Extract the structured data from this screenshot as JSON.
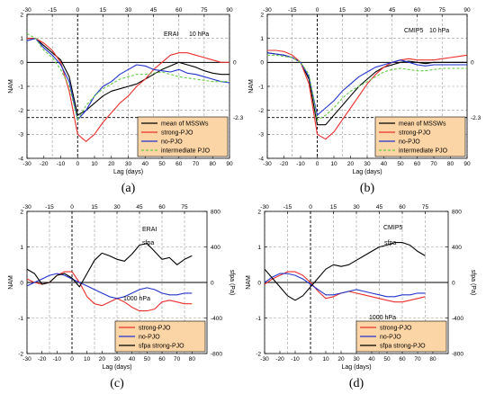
{
  "chart_data": [
    {
      "id": "a",
      "type": "line",
      "panel_label": "(a)",
      "annotations": [
        "ERAI",
        "10 hPa"
      ],
      "xlabel": "Lag (days)",
      "ylabel": "NAM",
      "y2label": "",
      "xlim": [
        -30,
        90
      ],
      "ylim": [
        -4,
        2
      ],
      "xticks_bottom": [
        -30,
        -20,
        -10,
        0,
        10,
        20,
        30,
        40,
        50,
        60,
        70,
        80,
        90
      ],
      "xticks_top": [
        -30,
        -15,
        0,
        15,
        30,
        45,
        60,
        75,
        90
      ],
      "yticks": [
        -4,
        -3,
        -2,
        -1,
        0,
        1,
        2
      ],
      "y2ticks": [],
      "y2lim": null,
      "right_labels": [
        {
          "text": "0",
          "y": 0
        },
        {
          "text": "-2.3",
          "y": -2.3
        }
      ],
      "hlines": [
        0,
        -2.3
      ],
      "vlines": [
        0
      ],
      "legend": {
        "position": "bottom-right",
        "entries": [
          "mean of MSSWs",
          "strong-PJO",
          "no-PJO",
          "intermediate PJO"
        ]
      },
      "series": [
        {
          "name": "mean of MSSWs",
          "color": "#000000",
          "style": "solid",
          "x": [
            -30,
            -25,
            -20,
            -15,
            -10,
            -5,
            0,
            5,
            10,
            15,
            20,
            25,
            30,
            35,
            40,
            45,
            50,
            55,
            60,
            65,
            70,
            75,
            80,
            85,
            90
          ],
          "y": [
            1.0,
            1.0,
            0.7,
            0.4,
            0.1,
            -0.6,
            -2.2,
            -2.0,
            -1.7,
            -1.4,
            -1.2,
            -1.1,
            -1.0,
            -0.9,
            -0.7,
            -0.5,
            -0.3,
            -0.15,
            0.0,
            -0.1,
            -0.2,
            -0.35,
            -0.45,
            -0.5,
            -0.5
          ]
        },
        {
          "name": "strong-PJO",
          "color": "#e8302e",
          "style": "solid",
          "x": [
            -30,
            -25,
            -20,
            -15,
            -10,
            -5,
            0,
            5,
            10,
            15,
            20,
            25,
            30,
            35,
            40,
            45,
            50,
            55,
            60,
            65,
            70,
            75,
            80,
            85,
            90
          ],
          "y": [
            1.0,
            1.0,
            0.8,
            0.5,
            0.0,
            -1.2,
            -3.0,
            -3.3,
            -3.0,
            -2.5,
            -2.1,
            -1.7,
            -1.4,
            -1.0,
            -0.7,
            -0.3,
            0.0,
            0.3,
            0.4,
            0.4,
            0.3,
            0.2,
            0.1,
            0.0,
            0.0
          ]
        },
        {
          "name": "no-PJO",
          "color": "#2233cc",
          "style": "solid",
          "x": [
            -30,
            -25,
            -20,
            -15,
            -10,
            -5,
            0,
            5,
            10,
            15,
            20,
            25,
            30,
            35,
            40,
            45,
            50,
            55,
            60,
            65,
            70,
            75,
            80,
            85,
            90
          ],
          "y": [
            0.9,
            1.0,
            0.6,
            0.3,
            -0.1,
            -0.8,
            -2.4,
            -2.0,
            -1.4,
            -1.0,
            -0.8,
            -0.5,
            -0.3,
            -0.1,
            -0.15,
            -0.3,
            -0.35,
            -0.4,
            -0.3,
            -0.45,
            -0.5,
            -0.6,
            -0.7,
            -0.8,
            -0.85
          ]
        },
        {
          "name": "intermediate PJO",
          "color": "#66cc44",
          "style": "dashed",
          "x": [
            -30,
            -25,
            -20,
            -15,
            -10,
            -5,
            0,
            5,
            10,
            15,
            20,
            25,
            30,
            35,
            40,
            45,
            50,
            55,
            60,
            65,
            70,
            75,
            80,
            85,
            90
          ],
          "y": [
            1.2,
            1.0,
            0.5,
            0.2,
            -0.3,
            -1.0,
            -2.4,
            -1.8,
            -1.4,
            -1.1,
            -0.9,
            -0.7,
            -0.6,
            -0.5,
            -0.5,
            -0.45,
            -0.4,
            -0.5,
            -0.6,
            -0.65,
            -0.7,
            -0.75,
            -0.8,
            -0.8,
            -0.8
          ]
        }
      ]
    },
    {
      "id": "b",
      "type": "line",
      "panel_label": "(b)",
      "annotations": [
        "CMIP5",
        "10 hPa"
      ],
      "xlabel": "Lag (days)",
      "ylabel": "NAM",
      "y2label": "",
      "xlim": [
        -30,
        90
      ],
      "ylim": [
        -4,
        2
      ],
      "xticks_bottom": [
        -30,
        -20,
        -10,
        0,
        10,
        20,
        30,
        40,
        50,
        60,
        70,
        80,
        90
      ],
      "xticks_top": [
        -30,
        -15,
        0,
        15,
        30,
        45,
        60,
        75,
        90
      ],
      "yticks": [
        -4,
        -3,
        -2,
        -1,
        0,
        1,
        2
      ],
      "y2ticks": [],
      "y2lim": null,
      "right_labels": [
        {
          "text": "0",
          "y": 0
        },
        {
          "text": "-2.3",
          "y": -2.3
        }
      ],
      "hlines": [
        0,
        -2.3
      ],
      "vlines": [
        0
      ],
      "legend": {
        "position": "bottom-right",
        "entries": [
          "mean of MSSWs",
          "strong-PJO",
          "no-PJO",
          "intermediate PJO"
        ]
      },
      "series": [
        {
          "name": "mean of MSSWs",
          "color": "#000000",
          "style": "solid",
          "x": [
            -30,
            -25,
            -20,
            -15,
            -10,
            -5,
            0,
            5,
            10,
            15,
            20,
            25,
            30,
            35,
            40,
            45,
            50,
            55,
            60,
            65,
            70,
            75,
            80,
            85,
            90
          ],
          "y": [
            0.4,
            0.35,
            0.3,
            0.2,
            0.0,
            -0.7,
            -2.6,
            -2.6,
            -2.2,
            -1.8,
            -1.4,
            -1.0,
            -0.7,
            -0.4,
            -0.2,
            -0.1,
            0.0,
            0.05,
            0.0,
            -0.05,
            0.0,
            0.0,
            0.0,
            0.0,
            0.0
          ]
        },
        {
          "name": "strong-PJO",
          "color": "#e8302e",
          "style": "solid",
          "x": [
            -30,
            -25,
            -20,
            -15,
            -10,
            -5,
            0,
            5,
            10,
            15,
            20,
            25,
            30,
            35,
            40,
            45,
            50,
            55,
            60,
            65,
            70,
            75,
            80,
            85,
            90
          ],
          "y": [
            0.5,
            0.5,
            0.45,
            0.3,
            0.0,
            -0.9,
            -3.0,
            -3.2,
            -2.9,
            -2.4,
            -1.9,
            -1.4,
            -0.9,
            -0.5,
            -0.2,
            0.0,
            0.1,
            0.15,
            0.1,
            0.1,
            0.1,
            0.15,
            0.2,
            0.25,
            0.3
          ]
        },
        {
          "name": "no-PJO",
          "color": "#2233cc",
          "style": "solid",
          "x": [
            -30,
            -25,
            -20,
            -15,
            -10,
            -5,
            0,
            5,
            10,
            15,
            20,
            25,
            30,
            35,
            40,
            45,
            50,
            55,
            60,
            65,
            70,
            75,
            80,
            85,
            90
          ],
          "y": [
            0.4,
            0.35,
            0.3,
            0.2,
            0.0,
            -0.6,
            -2.2,
            -1.9,
            -1.6,
            -1.2,
            -0.9,
            -0.6,
            -0.4,
            -0.2,
            -0.1,
            0.0,
            0.1,
            0.0,
            -0.1,
            -0.15,
            -0.1,
            -0.1,
            -0.1,
            -0.1,
            -0.1
          ]
        },
        {
          "name": "intermediate PJO",
          "color": "#66cc44",
          "style": "dashed",
          "x": [
            -30,
            -25,
            -20,
            -15,
            -10,
            -5,
            0,
            5,
            10,
            15,
            20,
            25,
            30,
            35,
            40,
            45,
            50,
            55,
            60,
            65,
            70,
            75,
            80,
            85,
            90
          ],
          "y": [
            0.3,
            0.3,
            0.25,
            0.2,
            0.0,
            -0.5,
            -2.4,
            -2.2,
            -1.9,
            -1.5,
            -1.2,
            -1.0,
            -0.8,
            -0.6,
            -0.4,
            -0.3,
            -0.25,
            -0.3,
            -0.35,
            -0.35,
            -0.3,
            -0.25,
            -0.25,
            -0.25,
            -0.25
          ]
        }
      ]
    },
    {
      "id": "c",
      "type": "line",
      "panel_label": "(c)",
      "annotations": [
        "ERAI",
        "sfpa",
        "1000 hPa"
      ],
      "xlabel": "Lag (days)",
      "ylabel": "NAM",
      "y2label": "sfpa (Pa)",
      "xlim": [
        -30,
        90
      ],
      "ylim": [
        -2,
        2
      ],
      "xticks_bottom": [
        -30,
        -20,
        -10,
        0,
        10,
        20,
        30,
        40,
        50,
        60,
        70,
        80
      ],
      "xticks_top": [
        -30,
        -15,
        0,
        15,
        30,
        45,
        60,
        75
      ],
      "yticks": [
        -2,
        -1,
        0,
        1,
        2
      ],
      "y2ticks": [
        -800,
        -400,
        0,
        400,
        800
      ],
      "y2lim": [
        -800,
        800
      ],
      "right_labels": [],
      "hlines": [
        0
      ],
      "vlines": [
        0
      ],
      "legend": {
        "position": "bottom-right",
        "entries": [
          "strong-PJO",
          "no-PJO",
          "sfpa strong-PJO"
        ]
      },
      "series": [
        {
          "name": "strong-PJO",
          "color": "#e8302e",
          "style": "solid",
          "x": [
            -30,
            -25,
            -20,
            -15,
            -10,
            -5,
            0,
            5,
            10,
            15,
            20,
            25,
            30,
            35,
            40,
            45,
            50,
            55,
            60,
            65,
            70,
            75,
            80
          ],
          "y": [
            0.1,
            0.0,
            -0.05,
            0.0,
            0.2,
            0.3,
            0.3,
            0.0,
            -0.4,
            -0.6,
            -0.65,
            -0.55,
            -0.45,
            -0.55,
            -0.7,
            -0.8,
            -0.8,
            -0.75,
            -0.55,
            -0.5,
            -0.55,
            -0.6,
            -0.6
          ]
        },
        {
          "name": "no-PJO",
          "color": "#2233cc",
          "style": "solid",
          "x": [
            -30,
            -25,
            -20,
            -15,
            -10,
            -5,
            0,
            5,
            10,
            15,
            20,
            25,
            30,
            35,
            40,
            45,
            50,
            55,
            60,
            65,
            70,
            75,
            80
          ],
          "y": [
            -0.1,
            0.0,
            0.1,
            0.2,
            0.25,
            0.2,
            0.1,
            0.0,
            -0.1,
            -0.2,
            -0.3,
            -0.4,
            -0.45,
            -0.4,
            -0.3,
            -0.2,
            -0.15,
            -0.2,
            -0.3,
            -0.35,
            -0.35,
            -0.3,
            -0.3
          ]
        },
        {
          "name": "sfpa strong-PJO",
          "color": "#000000",
          "style": "solid",
          "axis": "right",
          "x": [
            -30,
            -25,
            -20,
            -15,
            -10,
            -5,
            0,
            5,
            10,
            15,
            20,
            25,
            30,
            35,
            40,
            45,
            50,
            55,
            60,
            65,
            70,
            75,
            80
          ],
          "y": [
            150,
            100,
            -20,
            0,
            80,
            100,
            50,
            -50,
            100,
            250,
            330,
            300,
            260,
            240,
            320,
            420,
            440,
            350,
            260,
            280,
            200,
            260,
            300
          ]
        }
      ]
    },
    {
      "id": "d",
      "type": "line",
      "panel_label": "(d)",
      "annotations": [
        "CMIP5",
        "sfpa",
        "1000 hPa"
      ],
      "xlabel": "Lag (days)",
      "ylabel": "NAM",
      "y2label": "sfpa (Pa)",
      "xlim": [
        -30,
        90
      ],
      "ylim": [
        -2,
        2
      ],
      "xticks_bottom": [
        -30,
        -20,
        -10,
        0,
        10,
        20,
        30,
        40,
        50,
        60,
        70,
        80
      ],
      "xticks_top": [
        -30,
        -15,
        0,
        15,
        30,
        45,
        60,
        75
      ],
      "yticks": [
        -2,
        -1,
        0,
        1,
        2
      ],
      "y2ticks": [
        -800,
        -400,
        0,
        400,
        800
      ],
      "y2lim": [
        -800,
        800
      ],
      "right_labels": [],
      "hlines": [
        0
      ],
      "vlines": [
        0
      ],
      "legend": {
        "position": "bottom-right",
        "entries": [
          "strong-PJO",
          "no-PJO",
          "sfpa strong-PJO"
        ]
      },
      "series": [
        {
          "name": "strong-PJO",
          "color": "#e8302e",
          "style": "solid",
          "x": [
            -30,
            -25,
            -20,
            -15,
            -10,
            -5,
            0,
            5,
            10,
            15,
            20,
            25,
            30,
            35,
            40,
            45,
            50,
            55,
            60,
            65,
            70,
            75
          ],
          "y": [
            -0.05,
            0.1,
            0.2,
            0.3,
            0.3,
            0.2,
            0.0,
            -0.25,
            -0.45,
            -0.4,
            -0.3,
            -0.25,
            -0.3,
            -0.35,
            -0.4,
            -0.45,
            -0.5,
            -0.55,
            -0.55,
            -0.5,
            -0.45,
            -0.4
          ]
        },
        {
          "name": "no-PJO",
          "color": "#2233cc",
          "style": "solid",
          "x": [
            -30,
            -25,
            -20,
            -15,
            -10,
            -5,
            0,
            5,
            10,
            15,
            20,
            25,
            30,
            35,
            40,
            45,
            50,
            55,
            60,
            65,
            70,
            75
          ],
          "y": [
            0.0,
            0.15,
            0.25,
            0.25,
            0.2,
            0.1,
            -0.05,
            -0.2,
            -0.35,
            -0.35,
            -0.3,
            -0.25,
            -0.2,
            -0.25,
            -0.3,
            -0.35,
            -0.4,
            -0.4,
            -0.35,
            -0.35,
            -0.3,
            -0.3
          ]
        },
        {
          "name": "sfpa strong-PJO",
          "color": "#000000",
          "style": "solid",
          "axis": "right",
          "x": [
            -30,
            -25,
            -20,
            -15,
            -10,
            -5,
            0,
            5,
            10,
            15,
            20,
            25,
            30,
            35,
            40,
            45,
            50,
            55,
            60,
            65,
            70,
            75
          ],
          "y": [
            150,
            50,
            -50,
            -150,
            -200,
            -150,
            -50,
            50,
            150,
            200,
            180,
            200,
            250,
            300,
            350,
            400,
            420,
            450,
            450,
            420,
            350,
            300
          ]
        }
      ]
    }
  ]
}
